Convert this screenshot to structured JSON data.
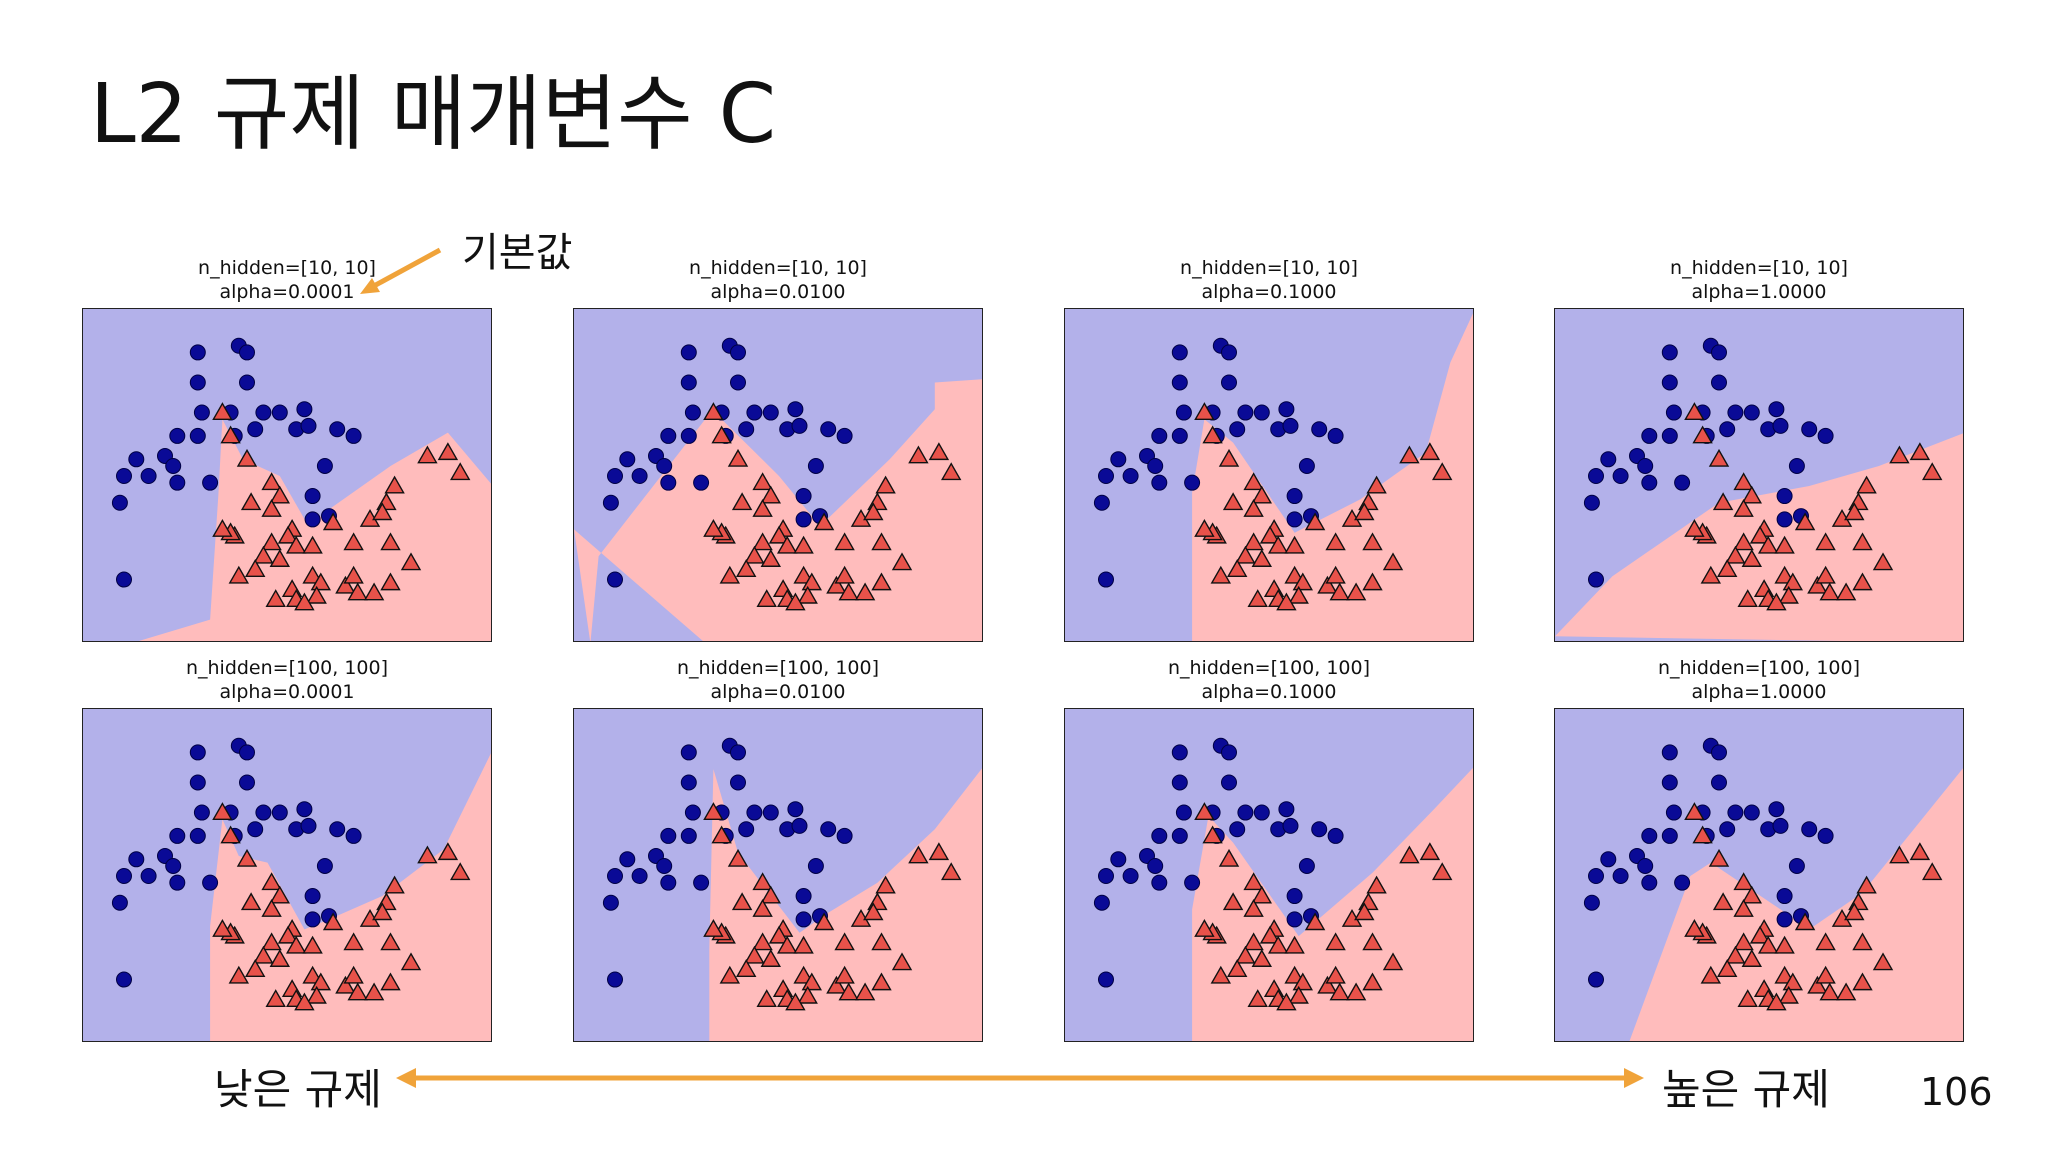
{
  "slide": {
    "title": "L2 규제 매개변수 C",
    "annotation_default": "기본값",
    "low_reg_label": "낮은 규제",
    "high_reg_label": "높은 규제",
    "page_number": "106",
    "arrow_color": "#f0a33a"
  },
  "colors": {
    "class0_region": "#b3b1ea",
    "class1_region": "#ffbcbc",
    "class0_point": "#0a0a96",
    "class1_point": "#e8524a"
  },
  "chart_data": [
    {
      "type": "scatter",
      "title_line1": "n_hidden=[10, 10]",
      "title_line2": "alpha=0.0001",
      "boundary": "v1"
    },
    {
      "type": "scatter",
      "title_line1": "n_hidden=[10, 10]",
      "title_line2": "alpha=0.0100",
      "boundary": "v2"
    },
    {
      "type": "scatter",
      "title_line1": "n_hidden=[10, 10]",
      "title_line2": "alpha=0.1000",
      "boundary": "v3"
    },
    {
      "type": "scatter",
      "title_line1": "n_hidden=[10, 10]",
      "title_line2": "alpha=1.0000",
      "boundary": "v4"
    },
    {
      "type": "scatter",
      "title_line1": "n_hidden=[100, 100]",
      "title_line2": "alpha=0.0001",
      "boundary": "v5"
    },
    {
      "type": "scatter",
      "title_line1": "n_hidden=[100, 100]",
      "title_line2": "alpha=0.0100",
      "boundary": "v6"
    },
    {
      "type": "scatter",
      "title_line1": "n_hidden=[100, 100]",
      "title_line2": "alpha=0.1000",
      "boundary": "v7"
    },
    {
      "type": "scatter",
      "title_line1": "n_hidden=[100, 100]",
      "title_line2": "alpha=1.0000",
      "boundary": "v8"
    }
  ],
  "points": {
    "class0": [
      [
        0.28,
        0.13
      ],
      [
        0.38,
        0.11
      ],
      [
        0.4,
        0.13
      ],
      [
        0.28,
        0.22
      ],
      [
        0.4,
        0.22
      ],
      [
        0.29,
        0.31
      ],
      [
        0.36,
        0.31
      ],
      [
        0.44,
        0.31
      ],
      [
        0.48,
        0.31
      ],
      [
        0.54,
        0.3
      ],
      [
        0.23,
        0.38
      ],
      [
        0.28,
        0.38
      ],
      [
        0.37,
        0.38
      ],
      [
        0.42,
        0.36
      ],
      [
        0.52,
        0.36
      ],
      [
        0.55,
        0.35
      ],
      [
        0.62,
        0.36
      ],
      [
        0.66,
        0.38
      ],
      [
        0.13,
        0.45
      ],
      [
        0.2,
        0.44
      ],
      [
        0.22,
        0.47
      ],
      [
        0.59,
        0.47
      ],
      [
        0.1,
        0.5
      ],
      [
        0.16,
        0.5
      ],
      [
        0.23,
        0.52
      ],
      [
        0.31,
        0.52
      ],
      [
        0.56,
        0.56
      ],
      [
        0.09,
        0.58
      ],
      [
        0.56,
        0.63
      ],
      [
        0.6,
        0.62
      ],
      [
        0.1,
        0.81
      ]
    ],
    "class1": [
      [
        0.34,
        0.31
      ],
      [
        0.36,
        0.38
      ],
      [
        0.4,
        0.45
      ],
      [
        0.46,
        0.52
      ],
      [
        0.48,
        0.56
      ],
      [
        0.41,
        0.58
      ],
      [
        0.46,
        0.6
      ],
      [
        0.51,
        0.66
      ],
      [
        0.61,
        0.64
      ],
      [
        0.7,
        0.63
      ],
      [
        0.74,
        0.58
      ],
      [
        0.76,
        0.53
      ],
      [
        0.73,
        0.61
      ],
      [
        0.66,
        0.7
      ],
      [
        0.75,
        0.7
      ],
      [
        0.84,
        0.44
      ],
      [
        0.89,
        0.43
      ],
      [
        0.92,
        0.49
      ],
      [
        0.37,
        0.68
      ],
      [
        0.36,
        0.67
      ],
      [
        0.46,
        0.7
      ],
      [
        0.5,
        0.68
      ],
      [
        0.52,
        0.71
      ],
      [
        0.56,
        0.71
      ],
      [
        0.48,
        0.75
      ],
      [
        0.44,
        0.74
      ],
      [
        0.42,
        0.78
      ],
      [
        0.34,
        0.66
      ],
      [
        0.38,
        0.8
      ],
      [
        0.56,
        0.8
      ],
      [
        0.58,
        0.82
      ],
      [
        0.51,
        0.84
      ],
      [
        0.64,
        0.83
      ],
      [
        0.66,
        0.8
      ],
      [
        0.67,
        0.85
      ],
      [
        0.71,
        0.85
      ],
      [
        0.75,
        0.82
      ],
      [
        0.8,
        0.76
      ],
      [
        0.52,
        0.87
      ],
      [
        0.57,
        0.86
      ],
      [
        0.54,
        0.88
      ],
      [
        0.47,
        0.87
      ]
    ]
  }
}
